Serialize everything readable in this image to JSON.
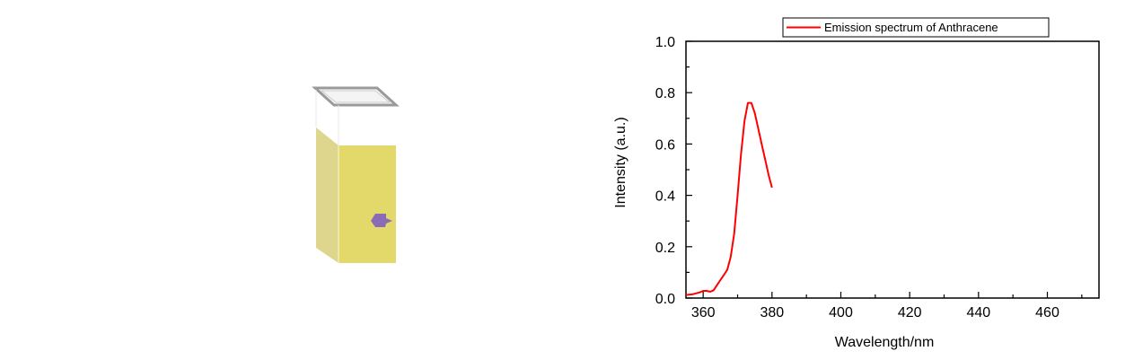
{
  "colors": {
    "solution_face": "#e2d96a",
    "solution_side": "#d7cf78",
    "cap_frame": "#9a9a9a",
    "marker": "#8a6bb5",
    "series_line": "#ff0000",
    "axis": "#000000"
  },
  "cuvette": {
    "marker_icon": "purple-arrow-marker-icon"
  },
  "chart_data": {
    "type": "line",
    "title": "",
    "xlabel": "Wavelength/nm",
    "ylabel": "Intensity (a.u.)",
    "xlim": [
      355,
      475
    ],
    "ylim": [
      0.0,
      1.0
    ],
    "xticks": [
      360,
      380,
      400,
      420,
      440,
      460
    ],
    "xtick_labels": [
      "360",
      "380",
      "400",
      "420",
      "440",
      "460"
    ],
    "yticks": [
      0.0,
      0.2,
      0.4,
      0.6,
      0.8,
      1.0
    ],
    "ytick_labels": [
      "0.0",
      "0.2",
      "0.4",
      "0.6",
      "0.8",
      "1.0"
    ],
    "grid": false,
    "legend_position": "top-right",
    "series": [
      {
        "name": "Emission spectrum of Anthracene",
        "color": "#ff0000",
        "x": [
          355,
          357,
          359,
          360,
          361,
          362,
          363,
          364,
          365,
          366,
          367,
          368,
          369,
          370,
          371,
          372,
          373,
          374,
          375,
          376,
          377,
          378,
          379,
          380
        ],
        "y": [
          0.012,
          0.015,
          0.022,
          0.028,
          0.028,
          0.025,
          0.03,
          0.05,
          0.07,
          0.09,
          0.11,
          0.16,
          0.25,
          0.4,
          0.56,
          0.69,
          0.76,
          0.76,
          0.72,
          0.66,
          0.6,
          0.54,
          0.48,
          0.43
        ]
      }
    ]
  }
}
